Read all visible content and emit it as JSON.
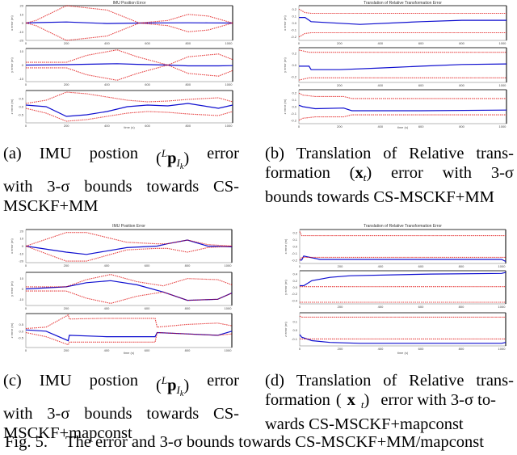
{
  "figure": {
    "label": "Fig. 5.",
    "caption": "The error and 3-σ bounds towards CS-MSCKF+MM/mapconst"
  },
  "subfigures": [
    {
      "id": "a",
      "caption_lines": [
        "(a) IMU postion (ᴸp_Iₖ) error",
        "with 3-σ bounds towards CS-",
        "MSCKF+MM"
      ],
      "caption": {
        "tag": "(a)",
        "w1": "IMU",
        "w2": "postion",
        "w4": "error",
        "line2": [
          "with",
          "3-σ",
          "bounds",
          "towards",
          "CS-"
        ],
        "line3": "MSCKF+MM"
      }
    },
    {
      "id": "b",
      "caption_lines": [
        "(b) Translation of Relative trans-",
        "formation (x_t) error with 3-σ",
        "bounds towards CS-MSCKF+MM"
      ],
      "caption": {
        "line1": [
          "(b)",
          "Translation",
          "of",
          "Relative",
          "trans-"
        ],
        "line2_pre": "formation",
        "line2_post": [
          "error",
          "with",
          "3-σ"
        ],
        "line3": "bounds towards CS-MSCKF+MM"
      }
    },
    {
      "id": "c",
      "caption_lines": [
        "(c) IMU postion (ᴸp_Iₖ) error",
        "with 3-σ bounds towards CS-",
        "MSCKF+mapconst"
      ],
      "caption": {
        "tag": "(c)",
        "w1": "IMU",
        "w2": "postion",
        "w4": "error",
        "line2": [
          "with",
          "3-σ",
          "bounds",
          "towards",
          "CS-"
        ],
        "line3": "MSCKF+mapconst"
      }
    },
    {
      "id": "d",
      "caption_lines": [
        "(d) Translation of Relative trans-",
        "formation (x_t) error with 3-σ to-",
        "wards CS-MSCKF+mapconst"
      ],
      "caption": {
        "line1": [
          "(d)",
          "Translation",
          "of",
          "Relative",
          "trans-"
        ],
        "line2_pre": "formation",
        "line2_post": "error with 3-σ to-",
        "line3": "wards CS-MSCKF+mapconst"
      }
    }
  ],
  "math": {
    "sup_L": "L",
    "p": "p",
    "I": "I",
    "k": "k",
    "x": "x",
    "t": "t",
    "lparen": "(",
    "rparen": ")"
  },
  "chart_data": [
    {
      "panel": "a",
      "type": "line",
      "title": "IMU Position Error",
      "xlabel": "time (s)",
      "x_ticks": [
        "0",
        "200",
        "400",
        "600",
        "800",
        "1000"
      ],
      "subplots": [
        {
          "ylabel": "x error (m)",
          "y_ticks": [
            "20",
            "10",
            "0",
            "-10",
            "-20"
          ],
          "x": [
            0,
            50,
            200,
            400,
            560,
            700,
            800,
            900,
            1020
          ],
          "series": [
            {
              "name": "error",
              "color": "#0000cc",
              "values": [
                0,
                0.5,
                1.2,
                -0.6,
                0,
                0.2,
                0.3,
                0.2,
                0
              ]
            },
            {
              "name": "+3σ",
              "color": "#dd0000",
              "values": [
                0,
                3,
                20,
                15,
                0,
                3,
                10,
                8,
                0
              ]
            },
            {
              "name": "-3σ",
              "color": "#dd0000",
              "values": [
                0,
                -3,
                -20,
                -15,
                0,
                -3,
                -10,
                -8,
                0
              ]
            }
          ]
        },
        {
          "ylabel": "y error (m)",
          "y_ticks": [
            "10",
            "0",
            "-10"
          ],
          "x": [
            0,
            200,
            300,
            450,
            550,
            700,
            800,
            950,
            1020
          ],
          "series": [
            {
              "name": "error",
              "color": "#0000cc",
              "values": [
                0,
                0.3,
                0.6,
                1.0,
                0.5,
                0,
                -0.6,
                -0.6,
                -0.4
              ]
            },
            {
              "name": "+3σ",
              "color": "#dd0000",
              "values": [
                2,
                2,
                7,
                11,
                6,
                0,
                6,
                8,
                4
              ]
            },
            {
              "name": "-3σ",
              "color": "#dd0000",
              "values": [
                -2,
                -2,
                -7,
                -11,
                -6,
                0,
                -6,
                -8,
                -4
              ]
            }
          ]
        },
        {
          "ylabel": "z error (m)",
          "y_ticks": [
            "0.5",
            "0.0",
            "-0.5"
          ],
          "x": [
            0,
            100,
            200,
            300,
            400,
            500,
            600,
            700,
            800,
            950,
            1020
          ],
          "series": [
            {
              "name": "error",
              "color": "#0000cc",
              "values": [
                0.1,
                0,
                -0.6,
                -0.5,
                -0.3,
                0.0,
                0.1,
                0.05,
                0.2,
                -0.1,
                0.1
              ]
            },
            {
              "name": "+3σ",
              "color": "#dd0000",
              "values": [
                0.2,
                0.4,
                0.9,
                0.8,
                0.6,
                0.4,
                0.3,
                0.35,
                0.45,
                0.55,
                0.3
              ]
            },
            {
              "name": "-3σ",
              "color": "#dd0000",
              "values": [
                -0.1,
                -0.4,
                -0.9,
                -0.8,
                -0.6,
                -0.4,
                -0.3,
                -0.35,
                -0.45,
                -0.55,
                -0.3
              ]
            }
          ]
        }
      ]
    },
    {
      "panel": "b",
      "type": "line",
      "title": "Translation of Relative Transformation Error",
      "xlabel": "time (s)",
      "x_ticks": [
        "0",
        "200",
        "400",
        "600",
        "800",
        "1000"
      ],
      "subplots": [
        {
          "ylabel": "x error (m)",
          "y_ticks": [
            "0.2",
            "0.1",
            "0.0",
            "-0.1",
            "-0.2"
          ],
          "x": [
            0,
            30,
            60,
            300,
            600,
            800,
            1020
          ],
          "series": [
            {
              "name": "error",
              "color": "#0000cc",
              "values": [
                0.08,
                0.08,
                0.02,
                -0.02,
                0.02,
                0.04,
                0.04
              ]
            },
            {
              "name": "+3σ",
              "color": "#dd0000",
              "values": [
                0.2,
                0.15,
                0.14,
                0.14,
                0.14,
                0.14,
                0.14
              ]
            },
            {
              "name": "-3σ",
              "color": "#dd0000",
              "values": [
                -0.2,
                -0.15,
                -0.14,
                -0.14,
                -0.14,
                -0.14,
                -0.14
              ]
            }
          ]
        },
        {
          "ylabel": "y error (m)",
          "y_ticks": [
            "0.2",
            "0.0",
            "-0.2"
          ],
          "x": [
            0,
            50,
            60,
            200,
            400,
            600,
            800,
            1020
          ],
          "series": [
            {
              "name": "error",
              "color": "#0000cc",
              "values": [
                -0.02,
                -0.02,
                -0.08,
                -0.08,
                -0.05,
                -0.02,
                0.01,
                0.02
              ]
            },
            {
              "name": "+3σ",
              "color": "#dd0000",
              "values": [
                0.26,
                0.22,
                0.22,
                0.22,
                0.22,
                0.22,
                0.22,
                0.22
              ]
            },
            {
              "name": "-3σ",
              "color": "#dd0000",
              "values": [
                -0.26,
                -0.22,
                -0.22,
                -0.22,
                -0.22,
                -0.22,
                -0.22,
                -0.22
              ]
            }
          ]
        },
        {
          "ylabel": "z error (m)",
          "y_ticks": [
            "0.2",
            "0.1",
            "0.0",
            "-0.1",
            "-0.2"
          ],
          "x": [
            0,
            20,
            80,
            220,
            260,
            600,
            1020
          ],
          "series": [
            {
              "name": "error",
              "color": "#0000cc",
              "values": [
                0.02,
                0.0,
                -0.03,
                -0.02,
                -0.06,
                -0.06,
                -0.05
              ]
            },
            {
              "name": "+3σ",
              "color": "#dd0000",
              "values": [
                0.2,
                0.17,
                0.15,
                0.15,
                0.12,
                0.12,
                0.12
              ]
            },
            {
              "name": "-3σ",
              "color": "#dd0000",
              "values": [
                -0.2,
                -0.17,
                -0.15,
                -0.15,
                -0.12,
                -0.12,
                -0.12
              ]
            }
          ]
        }
      ]
    },
    {
      "panel": "c",
      "type": "line",
      "title": "IMU Position Error",
      "xlabel": "time (s)",
      "x_ticks": [
        "0",
        "200",
        "400",
        "600",
        "800",
        "1000"
      ],
      "subplots": [
        {
          "ylabel": "x error (m)",
          "y_ticks": [
            "20",
            "10",
            "0",
            "-10",
            "-20"
          ],
          "x": [
            0,
            200,
            300,
            500,
            650,
            700,
            800,
            900,
            1020
          ],
          "series": [
            {
              "name": "error",
              "color": "#0000cc",
              "values": [
                0,
                -8,
                -11,
                -2,
                0,
                3,
                8,
                0,
                -1
              ]
            },
            {
              "name": "+3σ",
              "color": "#dd0000",
              "values": [
                0,
                18,
                18,
                5,
                3,
                3,
                8,
                2,
                0
              ]
            },
            {
              "name": "-3σ",
              "color": "#dd0000",
              "values": [
                0,
                -20,
                -20,
                -5,
                -3,
                -3,
                -8,
                -2,
                0
              ]
            }
          ]
        },
        {
          "ylabel": "y error (m)",
          "y_ticks": [
            "10",
            "0",
            "-10"
          ],
          "x": [
            0,
            200,
            300,
            420,
            550,
            680,
            800,
            950,
            1020
          ],
          "series": [
            {
              "name": "error",
              "color": "#0000cc",
              "values": [
                0,
                2,
                6,
                8,
                4,
                -3,
                -11,
                -10,
                -4
              ]
            },
            {
              "name": "+3σ",
              "color": "#dd0000",
              "values": [
                2,
                2,
                9,
                14,
                7,
                3,
                10,
                9,
                4
              ]
            },
            {
              "name": "-3σ",
              "color": "#dd0000",
              "values": [
                -2,
                -2,
                -9,
                -14,
                -7,
                -3,
                -11,
                -10,
                -4
              ]
            }
          ]
        },
        {
          "ylabel": "z error (m)",
          "y_ticks": [
            "0.5",
            "0.0",
            "-0.5"
          ],
          "x": [
            0,
            100,
            210,
            215,
            400,
            640,
            650,
            800,
            950,
            1020
          ],
          "series": [
            {
              "name": "error",
              "color": "#0000cc",
              "values": [
                0.1,
                0,
                -0.7,
                -0.3,
                -0.4,
                -0.4,
                -0.1,
                -0.2,
                -0.3,
                0
              ]
            },
            {
              "name": "+3σ",
              "color": "#dd0000",
              "values": [
                0.2,
                0.3,
                1.2,
                0.9,
                0.95,
                0.95,
                0.3,
                0.5,
                0.6,
                0.4
              ]
            },
            {
              "name": "-3σ",
              "color": "#dd0000",
              "values": [
                -0.1,
                -0.4,
                -1.0,
                -0.8,
                -0.8,
                -0.8,
                -0.1,
                -0.2,
                -0.3,
                -0.2
              ]
            }
          ]
        }
      ]
    },
    {
      "panel": "d",
      "type": "line",
      "title": "Translation of Relative Transformation Error",
      "xlabel": "time (s)",
      "x_ticks": [
        "0",
        "200",
        "400",
        "600",
        "800",
        "1000"
      ],
      "subplots": [
        {
          "ylabel": "x error (m)",
          "y_ticks": [
            "0.2",
            "0.1",
            "0.0",
            "-0.1",
            "-0.2"
          ],
          "x": [
            0,
            10,
            20,
            100,
            650,
            1000,
            1020
          ],
          "series": [
            {
              "name": "error",
              "color": "#0000cc",
              "values": [
                -0.2,
                -0.2,
                -0.14,
                -0.19,
                -0.19,
                -0.19,
                -0.22
              ]
            },
            {
              "name": "+3σ",
              "color": "#dd0000",
              "values": [
                0.22,
                0.16,
                0.16,
                0.16,
                0.16,
                0.16,
                0.16
              ]
            },
            {
              "name": "-3σ",
              "color": "#dd0000",
              "values": [
                -0.2,
                -0.16,
                -0.16,
                -0.16,
                -0.16,
                -0.16,
                -0.16
              ]
            }
          ]
        },
        {
          "ylabel": "y error (m)",
          "y_ticks": [
            "0.4",
            "0.2",
            "0.0",
            "-0.2",
            "-0.4"
          ],
          "x": [
            0,
            20,
            60,
            150,
            250,
            650,
            1000,
            1020
          ],
          "series": [
            {
              "name": "error",
              "color": "#0000cc",
              "values": [
                0.05,
                0.05,
                0.2,
                0.3,
                0.35,
                0.4,
                0.42,
                0.45
              ]
            },
            {
              "name": "+3σ",
              "color": "#dd0000",
              "values": [
                0.02,
                0.02,
                0.02,
                0.02,
                0.02,
                0.02,
                0.02,
                0.02
              ]
            },
            {
              "name": "-3σ",
              "color": "#dd0000",
              "values": [
                -0.45,
                -0.45,
                -0.45,
                -0.45,
                -0.45,
                -0.45,
                -0.45,
                -0.45
              ]
            }
          ]
        },
        {
          "ylabel": "z error (m)",
          "y_ticks": [
            "0.1",
            "0.0",
            "-0.1"
          ],
          "x": [
            0,
            10,
            60,
            150,
            300,
            650,
            1000,
            1020
          ],
          "series": [
            {
              "name": "error",
              "color": "#0000cc",
              "values": [
                -0.05,
                -0.08,
                -0.12,
                -0.14,
                -0.15,
                -0.15,
                -0.15,
                -0.14
              ]
            },
            {
              "name": "+3σ",
              "color": "#dd0000",
              "values": [
                0.16,
                0.15,
                0.15,
                0.15,
                0.15,
                0.15,
                0.15,
                0.15
              ]
            },
            {
              "name": "-3σ",
              "color": "#dd0000",
              "values": [
                -0.1,
                -0.1,
                -0.1,
                -0.1,
                -0.1,
                -0.1,
                -0.1,
                -0.1
              ]
            }
          ]
        }
      ]
    }
  ]
}
